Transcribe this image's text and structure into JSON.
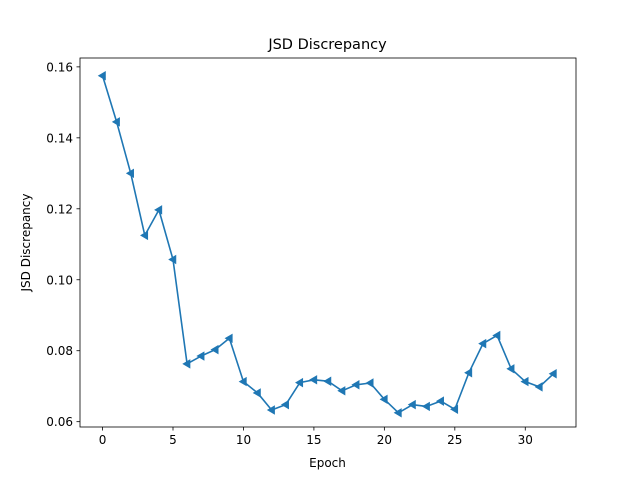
{
  "chart_data": {
    "type": "line",
    "title": "JSD Discrepancy",
    "xlabel": "Epoch",
    "ylabel": "JSD Discrepancy",
    "xlim": [
      -1.6,
      33.6
    ],
    "ylim": [
      0.0585,
      0.1625
    ],
    "xticks": [
      0,
      5,
      10,
      15,
      20,
      25,
      30
    ],
    "yticks": [
      0.06,
      0.08,
      0.1,
      0.12,
      0.14,
      0.16
    ],
    "ytick_labels": [
      "0.06",
      "0.08",
      "0.10",
      "0.12",
      "0.14",
      "0.16"
    ],
    "grid": false,
    "legend": "none",
    "marker": "left-triangle",
    "color": "#1f77b4",
    "series": [
      {
        "x": [
          0,
          1,
          2,
          3,
          4,
          5,
          6,
          7,
          8,
          9,
          10,
          11,
          12,
          13,
          14,
          15,
          16,
          17,
          18,
          19,
          20,
          21,
          22,
          23,
          24,
          25,
          26,
          27,
          28,
          29,
          30,
          31,
          32
        ],
        "values": [
          0.1575,
          0.1445,
          0.13,
          0.1125,
          0.1197,
          0.1057,
          0.0763,
          0.0785,
          0.0803,
          0.0835,
          0.0713,
          0.0681,
          0.0633,
          0.0648,
          0.071,
          0.0718,
          0.0714,
          0.0687,
          0.0704,
          0.0709,
          0.0663,
          0.0625,
          0.0648,
          0.0643,
          0.0658,
          0.0635,
          0.0738,
          0.082,
          0.0843,
          0.0749,
          0.0713,
          0.0698,
          0.0735
        ]
      }
    ]
  }
}
